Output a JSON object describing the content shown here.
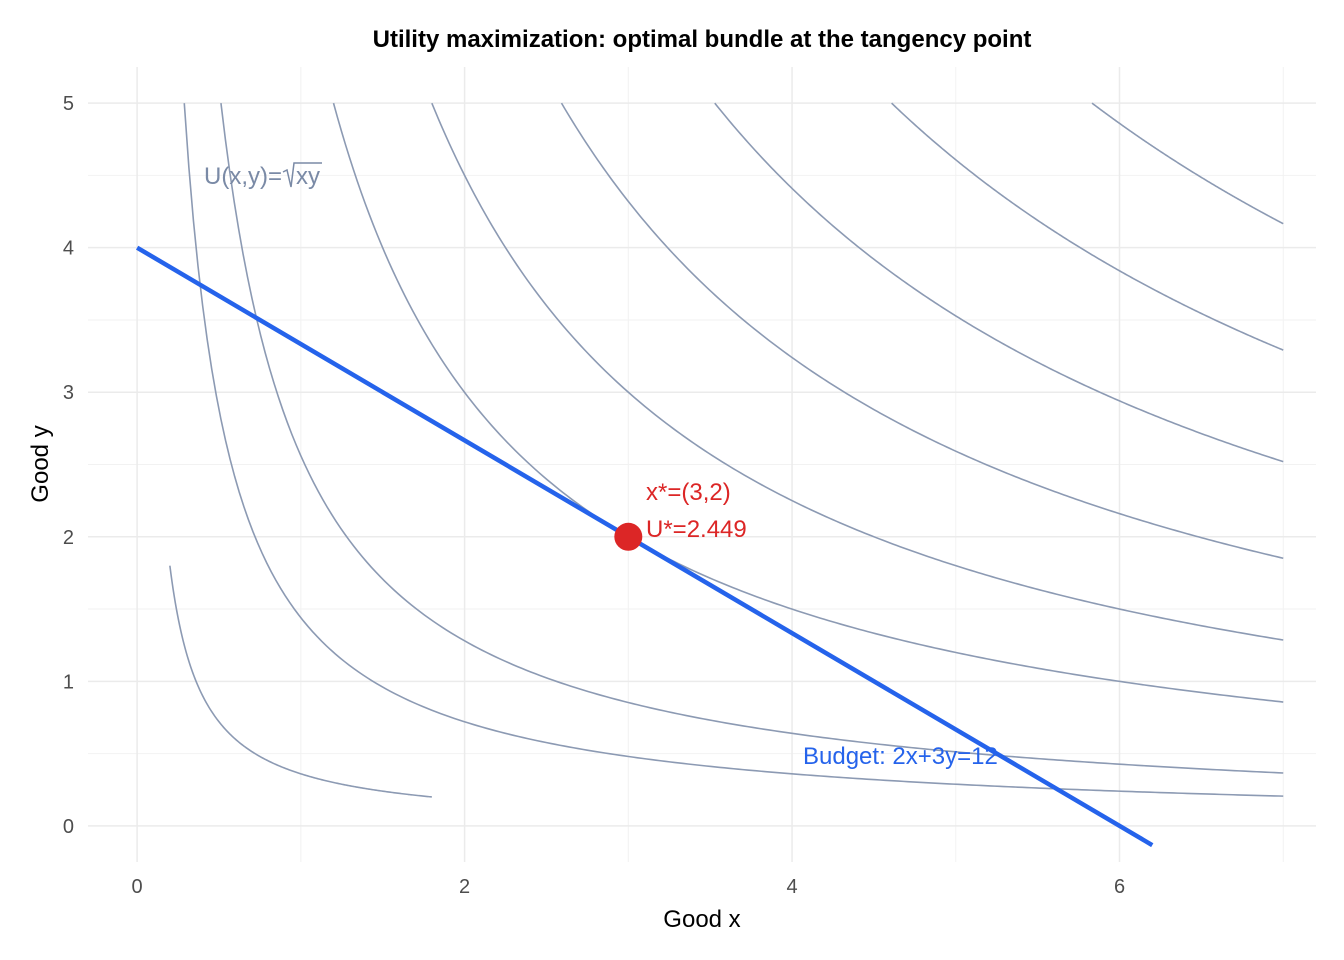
{
  "chart_data": {
    "type": "line",
    "title": "Utility maximization: optimal bundle at the tangency point",
    "xlabel": "Good x",
    "ylabel": "Good y",
    "xlim": [
      -0.3,
      7.2
    ],
    "ylim": [
      -0.25,
      5.25
    ],
    "x_ticks": [
      0,
      2,
      4,
      6
    ],
    "y_ticks": [
      0,
      1,
      2,
      3,
      4,
      5
    ],
    "grid": true,
    "indifference_curves": {
      "color": "#8c9ab3",
      "x_max": 7,
      "utility_levels": [
        0.6,
        1.2,
        1.6,
        2.449,
        3.0,
        3.6,
        4.2,
        4.8,
        5.4
      ]
    },
    "budget_line": {
      "label": "Budget: 2x+3y=12",
      "color": "#2563eb",
      "price_x": 2,
      "price_y": 3,
      "income": 12,
      "x_range": [
        0,
        6.2
      ]
    },
    "optimum": {
      "x": 3,
      "y": 2,
      "color": "#dc2626",
      "label_point": "x*=(3,2)",
      "label_utility": "U*=2.449"
    },
    "utility_label": {
      "prefix": "U(x,y)=",
      "radicand": "xy",
      "color": "#7a8aa6"
    }
  }
}
